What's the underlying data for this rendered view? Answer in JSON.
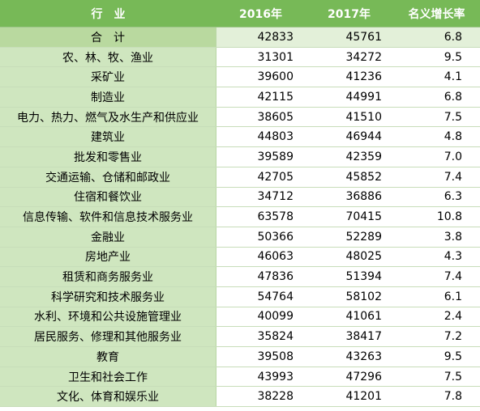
{
  "header": {
    "industry": "行　业",
    "year2016": "2016年",
    "year2017": "2017年",
    "growth": "名义增长率"
  },
  "rows": [
    {
      "name": "合　计",
      "v2016": "42833",
      "v2017": "45761",
      "rate": "6.8"
    },
    {
      "name": "农、林、牧、渔业",
      "v2016": "31301",
      "v2017": "34272",
      "rate": "9.5"
    },
    {
      "name": "采矿业",
      "v2016": "39600",
      "v2017": "41236",
      "rate": "4.1"
    },
    {
      "name": "制造业",
      "v2016": "42115",
      "v2017": "44991",
      "rate": "6.8"
    },
    {
      "name": "电力、热力、燃气及水生产和供应业",
      "v2016": "38605",
      "v2017": "41510",
      "rate": "7.5"
    },
    {
      "name": "建筑业",
      "v2016": "44803",
      "v2017": "46944",
      "rate": "4.8"
    },
    {
      "name": "批发和零售业",
      "v2016": "39589",
      "v2017": "42359",
      "rate": "7.0"
    },
    {
      "name": "交通运输、仓储和邮政业",
      "v2016": "42705",
      "v2017": "45852",
      "rate": "7.4"
    },
    {
      "name": "住宿和餐饮业",
      "v2016": "34712",
      "v2017": "36886",
      "rate": "6.3"
    },
    {
      "name": "信息传输、软件和信息技术服务业",
      "v2016": "63578",
      "v2017": "70415",
      "rate": "10.8"
    },
    {
      "name": "金融业",
      "v2016": "50366",
      "v2017": "52289",
      "rate": "3.8"
    },
    {
      "name": "房地产业",
      "v2016": "46063",
      "v2017": "48025",
      "rate": "4.3"
    },
    {
      "name": "租赁和商务服务业",
      "v2016": "47836",
      "v2017": "51394",
      "rate": "7.4"
    },
    {
      "name": "科学研究和技术服务业",
      "v2016": "54764",
      "v2017": "58102",
      "rate": "6.1"
    },
    {
      "name": "水利、环境和公共设施管理业",
      "v2016": "40099",
      "v2017": "41061",
      "rate": "2.4"
    },
    {
      "name": "居民服务、修理和其他服务业",
      "v2016": "35824",
      "v2017": "38417",
      "rate": "7.2"
    },
    {
      "name": "教育",
      "v2016": "39508",
      "v2017": "43263",
      "rate": "9.5"
    },
    {
      "name": "卫生和社会工作",
      "v2016": "43993",
      "v2017": "47296",
      "rate": "7.5"
    },
    {
      "name": "文化、体育和娱乐业",
      "v2016": "38228",
      "v2017": "41201",
      "rate": "7.8"
    }
  ]
}
